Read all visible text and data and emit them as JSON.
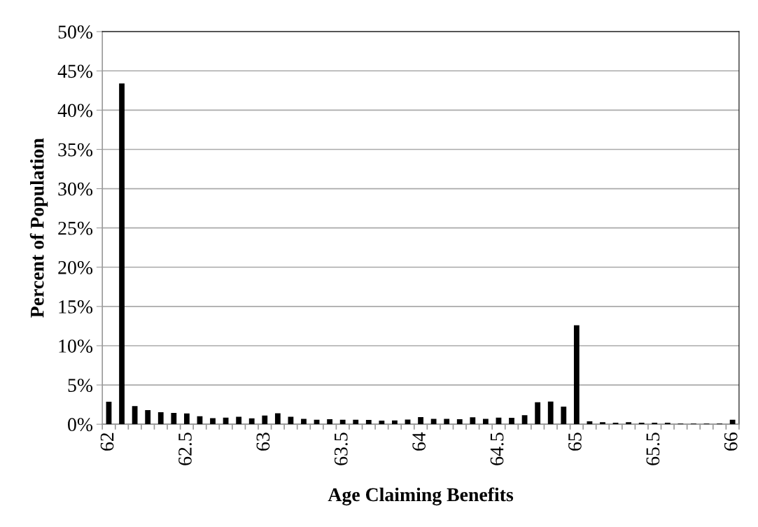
{
  "chart_data": {
    "type": "bar",
    "xlabel": "Age Claiming Benefits",
    "ylabel": "Percent of Population",
    "categories": [
      "62",
      null,
      null,
      null,
      null,
      null,
      "62.5",
      null,
      null,
      null,
      null,
      null,
      "63",
      null,
      null,
      null,
      null,
      null,
      "63.5",
      null,
      null,
      null,
      null,
      null,
      "64",
      null,
      null,
      null,
      null,
      null,
      "64.5",
      null,
      null,
      null,
      null,
      null,
      "65",
      null,
      null,
      null,
      null,
      null,
      "65.5",
      null,
      null,
      null,
      null,
      null,
      "66"
    ],
    "values": [
      2.87,
      43.4,
      2.3,
      1.8,
      1.54,
      1.45,
      1.37,
      1.02,
      0.77,
      0.85,
      0.94,
      0.74,
      1.11,
      1.39,
      0.94,
      0.68,
      0.57,
      0.63,
      0.57,
      0.57,
      0.54,
      0.45,
      0.48,
      0.6,
      0.91,
      0.68,
      0.68,
      0.63,
      0.88,
      0.68,
      0.85,
      0.82,
      1.14,
      2.79,
      2.9,
      2.25,
      12.6,
      0.37,
      0.26,
      0.2,
      0.26,
      0.2,
      0.2,
      0.2,
      0.09,
      0.09,
      0.09,
      0.09,
      0.57
    ],
    "color": "#000000",
    "ylim": [
      0,
      50
    ],
    "yticks": [
      {
        "value": 0,
        "label": "0%"
      },
      {
        "value": 5,
        "label": "5%"
      },
      {
        "value": 10,
        "label": "10%"
      },
      {
        "value": 15,
        "label": "15%"
      },
      {
        "value": 20,
        "label": "20%"
      },
      {
        "value": 25,
        "label": "25%"
      },
      {
        "value": 30,
        "label": "30%"
      },
      {
        "value": 35,
        "label": "35%"
      },
      {
        "value": 40,
        "label": "40%"
      },
      {
        "value": 45,
        "label": "45%"
      },
      {
        "value": 50,
        "label": "50%"
      }
    ],
    "grid": "y"
  }
}
